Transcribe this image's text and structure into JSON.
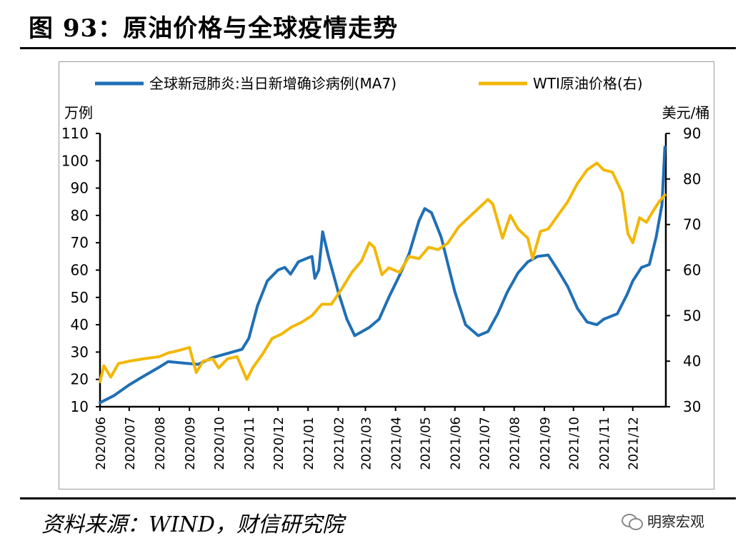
{
  "header": {
    "title": "图 93：原油价格与全球疫情走势"
  },
  "footer": {
    "source": "资料来源：WIND，财信研究院",
    "watermark": "明察宏观",
    "watermark_icon": "wechat-icon"
  },
  "chart_data": {
    "type": "line",
    "title": "",
    "legend_position": "top",
    "x_categories": [
      "2020/06",
      "2020/07",
      "2020/08",
      "2020/09",
      "2020/10",
      "2020/11",
      "2020/12",
      "2021/01",
      "2021/02",
      "2021/03",
      "2021/04",
      "2021/05",
      "2021/06",
      "2021/07",
      "2021/08",
      "2021/09",
      "2021/10",
      "2021/11",
      "2021/12"
    ],
    "left_axis": {
      "unit": "万例",
      "min": 10,
      "max": 110,
      "ticks": [
        "10",
        "20",
        "30",
        "40",
        "50",
        "60",
        "70",
        "80",
        "90",
        "100",
        "110"
      ]
    },
    "right_axis": {
      "unit": "美元/桶",
      "min": 30,
      "max": 90,
      "ticks": [
        "30",
        "40",
        "50",
        "60",
        "70",
        "80",
        "90"
      ]
    },
    "series": [
      {
        "name": "全球新冠肺炎:当日新增确诊病例(MA7)",
        "axis": "left",
        "color": "#1f6fb5",
        "points": [
          [
            "2020/06/01",
            11.5
          ],
          [
            "2020/06/15",
            14
          ],
          [
            "2020/07/01",
            18
          ],
          [
            "2020/07/15",
            21
          ],
          [
            "2020/08/01",
            24.5
          ],
          [
            "2020/08/10",
            26.5
          ],
          [
            "2020/08/25",
            26
          ],
          [
            "2020/09/10",
            25.5
          ],
          [
            "2020/09/25",
            28
          ],
          [
            "2020/10/10",
            29.5
          ],
          [
            "2020/10/25",
            31
          ],
          [
            "2020/11/01",
            35
          ],
          [
            "2020/11/10",
            47
          ],
          [
            "2020/11/20",
            56
          ],
          [
            "2020/12/01",
            60
          ],
          [
            "2020/12/08",
            61
          ],
          [
            "2020/12/14",
            58.5
          ],
          [
            "2020/12/22",
            63
          ],
          [
            "2021/01/01",
            64.5
          ],
          [
            "2021/01/05",
            65
          ],
          [
            "2021/01/08",
            57
          ],
          [
            "2021/01/12",
            60
          ],
          [
            "2021/01/16",
            74
          ],
          [
            "2021/01/22",
            65
          ],
          [
            "2021/02/01",
            52
          ],
          [
            "2021/02/10",
            42
          ],
          [
            "2021/02/18",
            36
          ],
          [
            "2021/02/28",
            38
          ],
          [
            "2021/03/05",
            39
          ],
          [
            "2021/03/15",
            42
          ],
          [
            "2021/03/25",
            50
          ],
          [
            "2021/04/05",
            58
          ],
          [
            "2021/04/15",
            66
          ],
          [
            "2021/04/25",
            78
          ],
          [
            "2021/05/01",
            82.5
          ],
          [
            "2021/05/08",
            81
          ],
          [
            "2021/05/18",
            72
          ],
          [
            "2021/06/01",
            52
          ],
          [
            "2021/06/12",
            40
          ],
          [
            "2021/06/25",
            36
          ],
          [
            "2021/07/05",
            37.5
          ],
          [
            "2021/07/15",
            44
          ],
          [
            "2021/07/25",
            52
          ],
          [
            "2021/08/05",
            59
          ],
          [
            "2021/08/15",
            63
          ],
          [
            "2021/08/25",
            65
          ],
          [
            "2021/09/05",
            65.5
          ],
          [
            "2021/09/15",
            60
          ],
          [
            "2021/09/25",
            54
          ],
          [
            "2021/10/05",
            46
          ],
          [
            "2021/10/15",
            41
          ],
          [
            "2021/10/25",
            40
          ],
          [
            "2021/11/01",
            42
          ],
          [
            "2021/11/15",
            44
          ],
          [
            "2021/11/25",
            51
          ],
          [
            "2021/12/01",
            56
          ],
          [
            "2021/12/10",
            61
          ],
          [
            "2021/12/18",
            62
          ],
          [
            "2021/12/25",
            72
          ],
          [
            "2021/12/31",
            84
          ],
          [
            "2022/01/03",
            105
          ]
        ]
      },
      {
        "name": "WTI原油价格(右)",
        "axis": "right",
        "color": "#f2b705",
        "points": [
          [
            "2020/06/01",
            35.5
          ],
          [
            "2020/06/05",
            39
          ],
          [
            "2020/06/12",
            36.5
          ],
          [
            "2020/06/20",
            39.5
          ],
          [
            "2020/07/01",
            40
          ],
          [
            "2020/07/15",
            40.5
          ],
          [
            "2020/08/01",
            41
          ],
          [
            "2020/08/10",
            41.8
          ],
          [
            "2020/08/20",
            42.3
          ],
          [
            "2020/09/01",
            43
          ],
          [
            "2020/09/08",
            37.5
          ],
          [
            "2020/09/15",
            40
          ],
          [
            "2020/09/25",
            40.5
          ],
          [
            "2020/10/01",
            38.5
          ],
          [
            "2020/10/10",
            40.5
          ],
          [
            "2020/10/20",
            41
          ],
          [
            "2020/10/30",
            36
          ],
          [
            "2020/11/05",
            38.5
          ],
          [
            "2020/11/15",
            41.5
          ],
          [
            "2020/11/25",
            45
          ],
          [
            "2020/12/05",
            46
          ],
          [
            "2020/12/15",
            47.5
          ],
          [
            "2020/12/25",
            48.5
          ],
          [
            "2021/01/05",
            50
          ],
          [
            "2021/01/15",
            52.5
          ],
          [
            "2021/01/25",
            52.5
          ],
          [
            "2021/02/05",
            56
          ],
          [
            "2021/02/15",
            59.5
          ],
          [
            "2021/02/25",
            62
          ],
          [
            "2021/03/05",
            66
          ],
          [
            "2021/03/10",
            65
          ],
          [
            "2021/03/18",
            59
          ],
          [
            "2021/03/25",
            60.5
          ],
          [
            "2021/04/05",
            59.5
          ],
          [
            "2021/04/15",
            63
          ],
          [
            "2021/04/25",
            62.5
          ],
          [
            "2021/05/05",
            65
          ],
          [
            "2021/05/15",
            64.5
          ],
          [
            "2021/05/25",
            66
          ],
          [
            "2021/06/05",
            69.5
          ],
          [
            "2021/06/15",
            71.5
          ],
          [
            "2021/06/25",
            73.5
          ],
          [
            "2021/07/05",
            75.5
          ],
          [
            "2021/07/10",
            74.5
          ],
          [
            "2021/07/20",
            67
          ],
          [
            "2021/07/28",
            72
          ],
          [
            "2021/08/05",
            69
          ],
          [
            "2021/08/15",
            67
          ],
          [
            "2021/08/20",
            62.5
          ],
          [
            "2021/08/28",
            68.5
          ],
          [
            "2021/09/05",
            69
          ],
          [
            "2021/09/15",
            72
          ],
          [
            "2021/09/25",
            75
          ],
          [
            "2021/10/05",
            79
          ],
          [
            "2021/10/15",
            82
          ],
          [
            "2021/10/25",
            83.5
          ],
          [
            "2021/11/01",
            82
          ],
          [
            "2021/11/10",
            81.5
          ],
          [
            "2021/11/20",
            77
          ],
          [
            "2021/11/26",
            68
          ],
          [
            "2021/12/01",
            66
          ],
          [
            "2021/12/08",
            71.5
          ],
          [
            "2021/12/15",
            70.5
          ],
          [
            "2021/12/22",
            73
          ],
          [
            "2021/12/28",
            75
          ],
          [
            "2022/01/03",
            76.5
          ]
        ]
      }
    ]
  }
}
